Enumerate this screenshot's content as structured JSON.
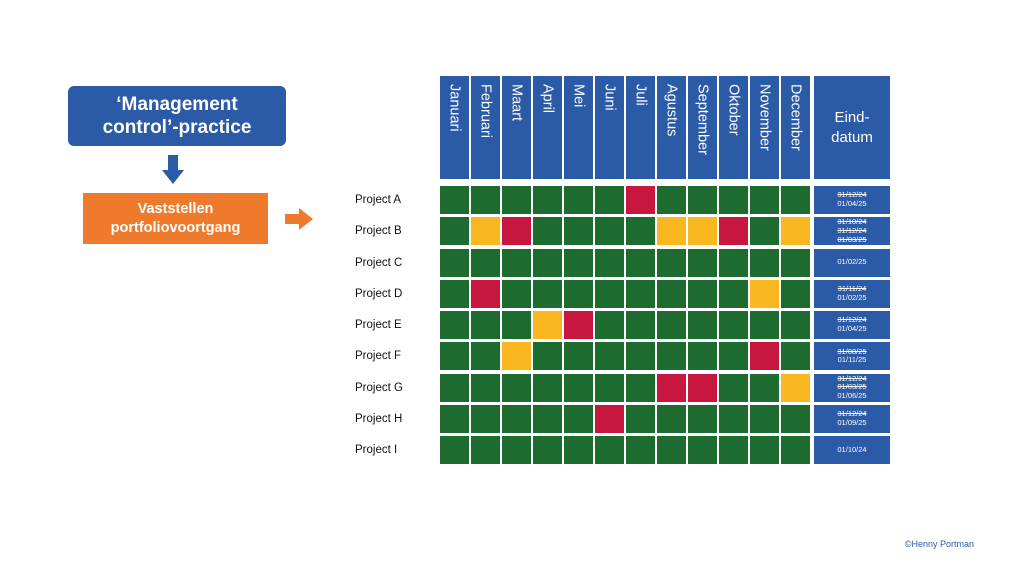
{
  "process": {
    "management_line1": "‘Management",
    "management_line2": "control’-practice",
    "vaststellen_line1": "Vaststellen",
    "vaststellen_line2": "portfoliovoortgang"
  },
  "colors": {
    "green": "#1e6b30",
    "orange": "#fbb71f",
    "red": "#c8173e",
    "blue": "#2b5aa6",
    "accent_orange": "#f07a2b"
  },
  "header": {
    "months": [
      "Januari",
      "Februari",
      "Maart",
      "April",
      "Mei",
      "Juni",
      "Juli",
      "Agustus",
      "September",
      "Oktober",
      "November",
      "December"
    ],
    "eind_line1": "Eind-",
    "eind_line2": "datum"
  },
  "status_legend": {
    "G": "green",
    "O": "orange",
    "R": "red"
  },
  "projects": [
    {
      "name": "Project A",
      "status": [
        "G",
        "G",
        "G",
        "G",
        "G",
        "G",
        "R",
        "G",
        "G",
        "G",
        "G",
        "G"
      ],
      "dates": [
        {
          "text": "31/12/24",
          "struck": true
        },
        {
          "text": "01/04/25",
          "struck": false
        }
      ]
    },
    {
      "name": "Project B",
      "status": [
        "G",
        "O",
        "R",
        "G",
        "G",
        "G",
        "G",
        "O",
        "O",
        "R",
        "G",
        "O"
      ],
      "dates": [
        {
          "text": "31/10/24",
          "struck": true
        },
        {
          "text": "31/12/24",
          "struck": true
        },
        {
          "text": "01/03/25",
          "struck": true
        }
      ]
    },
    {
      "name": "Project C",
      "status": [
        "G",
        "G",
        "G",
        "G",
        "G",
        "G",
        "G",
        "G",
        "G",
        "G",
        "G",
        "G"
      ],
      "dates": [
        {
          "text": "01/02/25",
          "struck": false
        }
      ]
    },
    {
      "name": "Project D",
      "status": [
        "G",
        "R",
        "G",
        "G",
        "G",
        "G",
        "G",
        "G",
        "G",
        "G",
        "O",
        "G"
      ],
      "dates": [
        {
          "text": "31/11/24",
          "struck": true
        },
        {
          "text": "01/02/25",
          "struck": false
        }
      ]
    },
    {
      "name": "Project E",
      "status": [
        "G",
        "G",
        "G",
        "O",
        "R",
        "G",
        "G",
        "G",
        "G",
        "G",
        "G",
        "G"
      ],
      "dates": [
        {
          "text": "31/12/24",
          "struck": true
        },
        {
          "text": "01/04/25",
          "struck": false
        }
      ]
    },
    {
      "name": "Project F",
      "status": [
        "G",
        "G",
        "O",
        "G",
        "G",
        "G",
        "G",
        "G",
        "G",
        "G",
        "R",
        "G"
      ],
      "dates": [
        {
          "text": "31/08/25",
          "struck": true
        },
        {
          "text": "01/11/25",
          "struck": false
        }
      ]
    },
    {
      "name": "Project G",
      "status": [
        "G",
        "G",
        "G",
        "G",
        "G",
        "G",
        "G",
        "R",
        "R",
        "G",
        "G",
        "O"
      ],
      "dates": [
        {
          "text": "31/12/24",
          "struck": true
        },
        {
          "text": "01/03/25",
          "struck": true
        },
        {
          "text": "01/06/25",
          "struck": false
        }
      ]
    },
    {
      "name": "Project H",
      "status": [
        "G",
        "G",
        "G",
        "G",
        "G",
        "R",
        "G",
        "G",
        "G",
        "G",
        "G",
        "G"
      ],
      "dates": [
        {
          "text": "31/12/24",
          "struck": true
        },
        {
          "text": "01/09/25",
          "struck": false
        }
      ]
    },
    {
      "name": "Project I",
      "status": [
        "G",
        "G",
        "G",
        "G",
        "G",
        "G",
        "G",
        "G",
        "G",
        "G",
        "G",
        "G"
      ],
      "dates": [
        {
          "text": "01/10/24",
          "struck": false
        }
      ]
    }
  ],
  "copyright": "©Henny Portman"
}
